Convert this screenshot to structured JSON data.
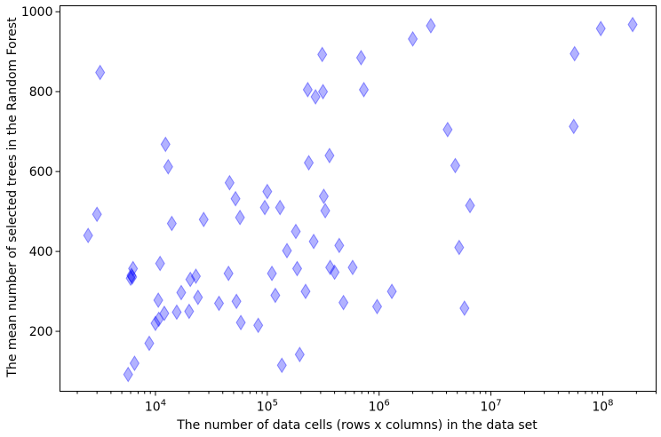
{
  "chart_data": {
    "type": "scatter",
    "xlabel": "The number of data cells (rows x columns) in the data set",
    "ylabel": "The mean number of selected trees in the Random Forest",
    "xscale": "log",
    "xlim": [
      1400,
      300000000
    ],
    "ylim": [
      50,
      1015
    ],
    "x_major_ticks": [
      {
        "value": 10000,
        "base": "10",
        "exp": "4"
      },
      {
        "value": 100000,
        "base": "10",
        "exp": "5"
      },
      {
        "value": 1000000,
        "base": "10",
        "exp": "6"
      },
      {
        "value": 10000000,
        "base": "10",
        "exp": "7"
      },
      {
        "value": 100000000,
        "base": "10",
        "exp": "8"
      }
    ],
    "y_ticks": [
      200,
      400,
      600,
      800,
      1000
    ],
    "grid": false,
    "legend": "none",
    "marker": "diamond",
    "color": "#0000ff",
    "alpha": 0.3,
    "series": [
      {
        "points": [
          [
            2500,
            440
          ],
          [
            3000,
            493
          ],
          [
            3200,
            848
          ],
          [
            5700,
            92
          ],
          [
            6000,
            333
          ],
          [
            6100,
            340
          ],
          [
            6200,
            336
          ],
          [
            6300,
            357
          ],
          [
            6500,
            120
          ],
          [
            8800,
            170
          ],
          [
            10000,
            220
          ],
          [
            10600,
            278
          ],
          [
            10700,
            230
          ],
          [
            11000,
            370
          ],
          [
            12000,
            245
          ],
          [
            12300,
            668
          ],
          [
            13000,
            612
          ],
          [
            14000,
            470
          ],
          [
            15500,
            248
          ],
          [
            17000,
            297
          ],
          [
            20000,
            250
          ],
          [
            20500,
            330
          ],
          [
            23000,
            338
          ],
          [
            24000,
            285
          ],
          [
            27000,
            480
          ],
          [
            37000,
            270
          ],
          [
            45000,
            345
          ],
          [
            46000,
            572
          ],
          [
            52000,
            532
          ],
          [
            53000,
            275
          ],
          [
            57000,
            485
          ],
          [
            58000,
            222
          ],
          [
            83000,
            215
          ],
          [
            95000,
            510
          ],
          [
            100000,
            550
          ],
          [
            110000,
            345
          ],
          [
            118000,
            290
          ],
          [
            130000,
            510
          ],
          [
            135000,
            115
          ],
          [
            150000,
            402
          ],
          [
            180000,
            450
          ],
          [
            185000,
            357
          ],
          [
            195000,
            142
          ],
          [
            220000,
            300
          ],
          [
            230000,
            805
          ],
          [
            235000,
            622
          ],
          [
            260000,
            425
          ],
          [
            270000,
            787
          ],
          [
            310000,
            893
          ],
          [
            315000,
            800
          ],
          [
            320000,
            538
          ],
          [
            330000,
            502
          ],
          [
            360000,
            640
          ],
          [
            365000,
            360
          ],
          [
            400000,
            348
          ],
          [
            440000,
            415
          ],
          [
            480000,
            272
          ],
          [
            580000,
            360
          ],
          [
            690000,
            885
          ],
          [
            730000,
            805
          ],
          [
            960000,
            262
          ],
          [
            1300000,
            300
          ],
          [
            2000000,
            932
          ],
          [
            2900000,
            965
          ],
          [
            4100000,
            705
          ],
          [
            4800000,
            615
          ],
          [
            5200000,
            410
          ],
          [
            5800000,
            258
          ],
          [
            6500000,
            515
          ],
          [
            55000000,
            713
          ],
          [
            56000000,
            895
          ],
          [
            96000000,
            958
          ],
          [
            185000000,
            968
          ]
        ]
      }
    ]
  }
}
